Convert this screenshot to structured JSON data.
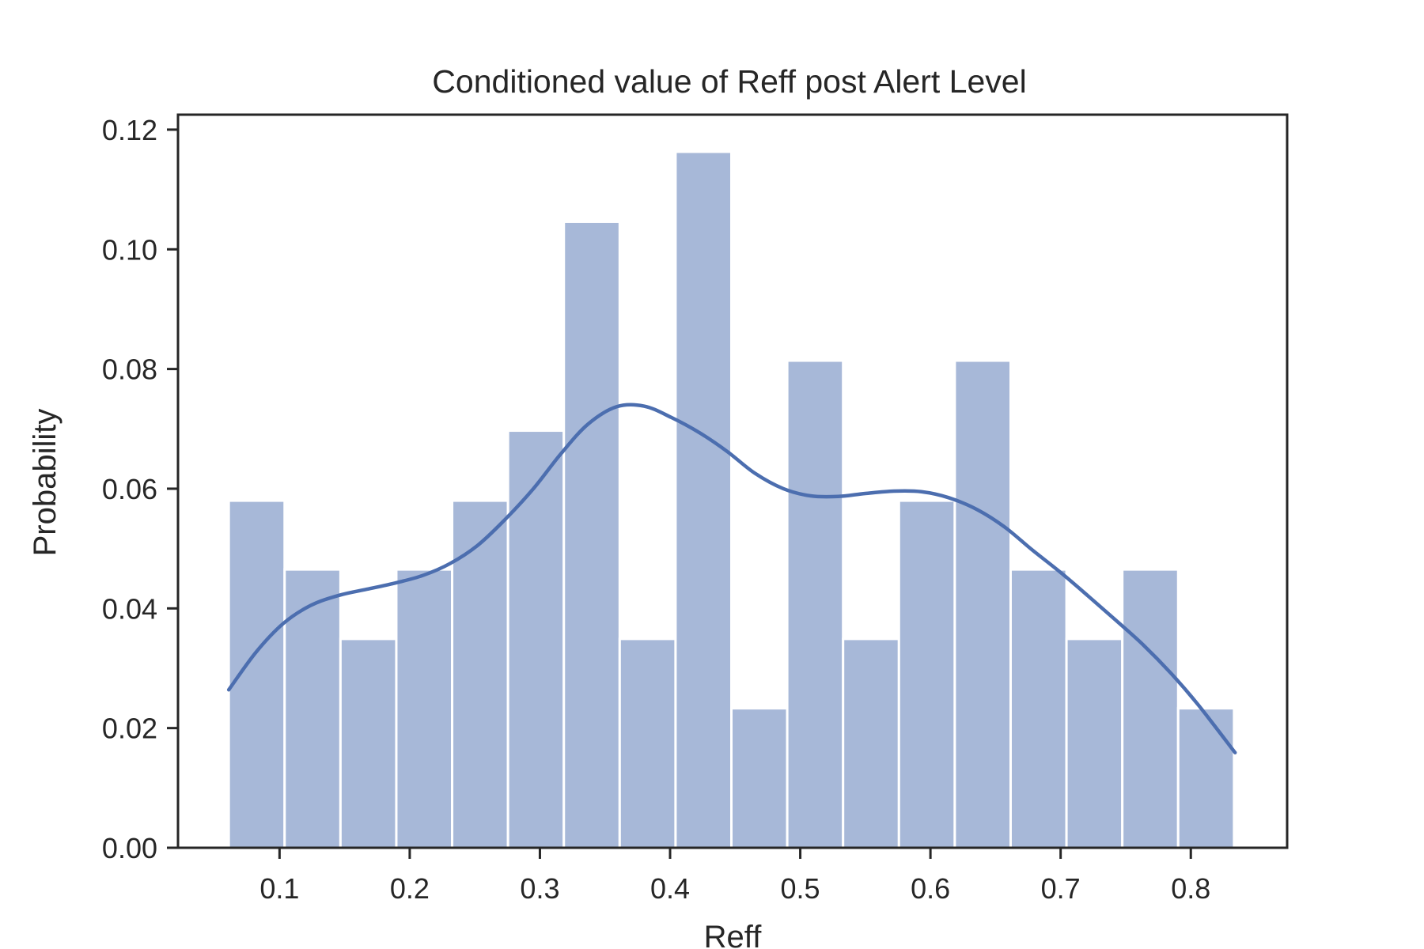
{
  "chart_data": {
    "type": "bar",
    "title": "Conditioned value of Reff post Alert Level",
    "xlabel": "Reff",
    "ylabel": "Probability",
    "xlim": [
      0.022,
      0.874
    ],
    "ylim": [
      0.0,
      0.1225
    ],
    "xticks": [
      0.1,
      0.2,
      0.3,
      0.4,
      0.5,
      0.6,
      0.7,
      0.8
    ],
    "xtick_labels": [
      "0.1",
      "0.2",
      "0.3",
      "0.4",
      "0.5",
      "0.6",
      "0.7",
      "0.8"
    ],
    "yticks": [
      0.0,
      0.02,
      0.04,
      0.06,
      0.08,
      0.1,
      0.12
    ],
    "ytick_labels": [
      "0.00",
      "0.02",
      "0.04",
      "0.06",
      "0.08",
      "0.10",
      "0.12"
    ],
    "grid": false,
    "bin_start": 0.061,
    "bin_width": 0.0429,
    "values": [
      0.058,
      0.0465,
      0.0349,
      0.0465,
      0.058,
      0.0697,
      0.1046,
      0.0349,
      0.1163,
      0.0233,
      0.0814,
      0.0349,
      0.058,
      0.0814,
      0.0465,
      0.0349,
      0.0465,
      0.0233
    ],
    "bar_color": "#a7b8d8",
    "kde": {
      "name": "",
      "color": "#4c6eaf",
      "x": [
        0.061,
        0.082,
        0.103,
        0.124,
        0.146,
        0.167,
        0.188,
        0.21,
        0.231,
        0.252,
        0.273,
        0.295,
        0.316,
        0.337,
        0.359,
        0.38,
        0.401,
        0.423,
        0.444,
        0.465,
        0.487,
        0.508,
        0.529,
        0.55,
        0.572,
        0.593,
        0.614,
        0.636,
        0.657,
        0.678,
        0.7,
        0.721,
        0.742,
        0.763,
        0.785,
        0.806,
        0.834
      ],
      "y": [
        0.0264,
        0.0327,
        0.0375,
        0.0405,
        0.0422,
        0.0432,
        0.0442,
        0.0455,
        0.0475,
        0.0505,
        0.0548,
        0.06,
        0.0658,
        0.0708,
        0.0737,
        0.0738,
        0.0719,
        0.0693,
        0.0662,
        0.0626,
        0.06,
        0.0588,
        0.0587,
        0.0592,
        0.0596,
        0.0595,
        0.0585,
        0.0565,
        0.0536,
        0.0498,
        0.046,
        0.0421,
        0.0381,
        0.034,
        0.0291,
        0.0238,
        0.0159
      ]
    }
  }
}
